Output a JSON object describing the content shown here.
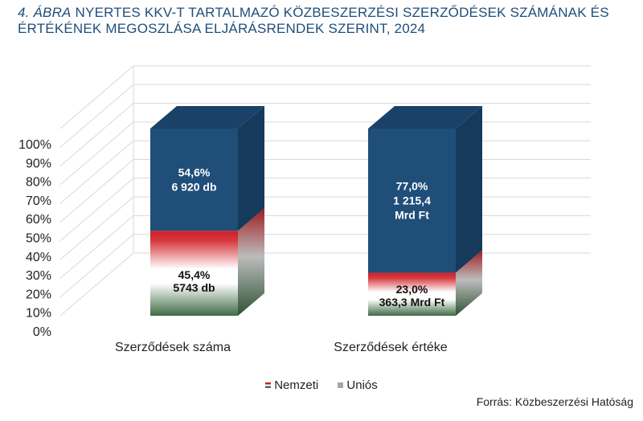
{
  "title": {
    "lead": "4. ÁBRA",
    "rest": "NYERTES KKV-T TARTALMAZÓ KÖZBESZERZÉSI SZERZŐDÉSEK SZÁMÁNAK ÉS ÉRTÉKÉNEK MEGOSZLÁSA ELJÁRÁSRENDEK SZERINT, 2024"
  },
  "colors": {
    "unios_front": "#1f4e79",
    "unios_side": "#163a5c",
    "unios_top": "#1a4269",
    "nemzeti_red": "#cc2027",
    "nemzeti_white": "#ffffff",
    "nemzeti_green": "#477050",
    "grid": "#d9d9d9",
    "legend_unios": "#a6a6a6"
  },
  "chart_data": {
    "type": "bar",
    "stacked": true,
    "percent": true,
    "three_d": true,
    "categories": [
      "Szerződések száma",
      "Szerződések értéke"
    ],
    "series": [
      {
        "name": "Nemzeti",
        "values": [
          45.4,
          23.0
        ],
        "labels": [
          [
            "45,4%",
            "5743 db"
          ],
          [
            "23,0%",
            "363,3 Mrd Ft"
          ]
        ]
      },
      {
        "name": "Uniós",
        "values": [
          54.6,
          77.0
        ],
        "labels": [
          [
            "54,6%",
            "6 920 db"
          ],
          [
            "77,0%",
            "1 215,4",
            "Mrd Ft"
          ]
        ]
      }
    ],
    "yticks": [
      "0%",
      "10%",
      "20%",
      "30%",
      "40%",
      "50%",
      "60%",
      "70%",
      "80%",
      "90%",
      "100%"
    ],
    "ylim": [
      0,
      100
    ],
    "grid": true,
    "legend_position": "bottom"
  },
  "legend": {
    "nemzeti": "Nemzeti",
    "unios": "Uniós"
  },
  "source": "Forrás: Közbeszerzési Hatóság"
}
